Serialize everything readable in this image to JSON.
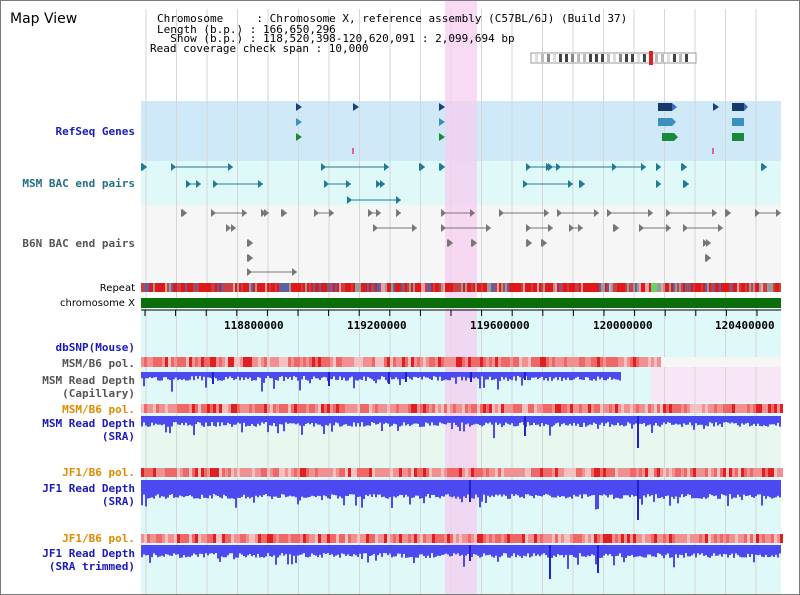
{
  "view": {
    "title": "Map View"
  },
  "info": {
    "chromosome": "Chromosome     : Chromosome X, reference assembly (C57BL/6J) (Build 37)",
    "length": "Length (b.p.) : 166,650,296",
    "show": "  Show (b.p.) : 118,520,398-120,620,091 : 2,099,694 bp",
    "span": "Read coverage check span : 10,000"
  },
  "tracks": {
    "refseq": "RefSeq Genes",
    "msm_bac": "MSM BAC end pairs",
    "b6n_bac": "B6N BAC end pairs",
    "repeat": "Repeat",
    "chrom": "chromosome X",
    "dbsnp": "dbSNP(Mouse)",
    "msm_b6_pol_1": "MSM/B6 pol.",
    "msm_depth_cap": "MSM Read Depth\n(Capillary)",
    "msm_b6_pol_2": "MSM/B6 pol.",
    "msm_depth_sra": "MSM Read Depth\n(SRA)",
    "jf1_b6_pol_1": "JF1/B6 pol.",
    "jf1_depth_sra": "JF1 Read Depth\n(SRA)",
    "jf1_b6_pol_2": "JF1/B6 pol.",
    "jf1_depth_trim": "JF1 Read Depth\n(SRA trimmed)"
  },
  "axis": {
    "ticks": [
      "118800000",
      "119200000",
      "119600000",
      "120000000",
      "120400000"
    ]
  },
  "colors": {
    "highlight": "#f5cdf0",
    "refseq_band": "#cfe9f8",
    "bac_band": "#dff8f8",
    "chrom": "#0a6e0a",
    "depth": "#4a4af0",
    "pol": "#f08080"
  }
}
